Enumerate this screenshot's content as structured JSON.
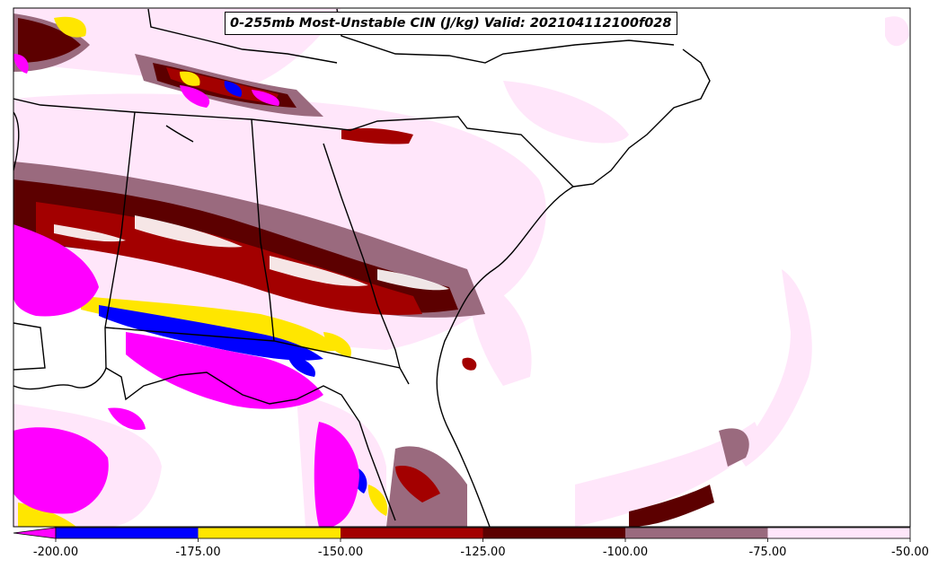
{
  "title": "0-255mb Most-Unstable CIN (J/kg) Valid: 202104112100f028",
  "colorbar": {
    "levels": [
      -200,
      -175,
      -150,
      -125,
      -100,
      -75,
      -50
    ],
    "tick_labels": [
      "-200.00",
      "-175.00",
      "-150.00",
      "-125.00",
      "-100.00",
      "-75.00",
      "-50.00"
    ],
    "under_color": "#ff00ff",
    "colors": [
      "#0000ff",
      "#ffe600",
      "#a30000",
      "#5c0000",
      "#9a6a7e",
      "#ffe6fa"
    ],
    "extend": "min"
  },
  "palette": {
    "magenta": "#ff00ff",
    "blue": "#0000ff",
    "yellow": "#ffe600",
    "red": "#a30000",
    "dark_red": "#5c0000",
    "mauve": "#9a6a7e",
    "light_pink": "#ffe6fa"
  }
}
